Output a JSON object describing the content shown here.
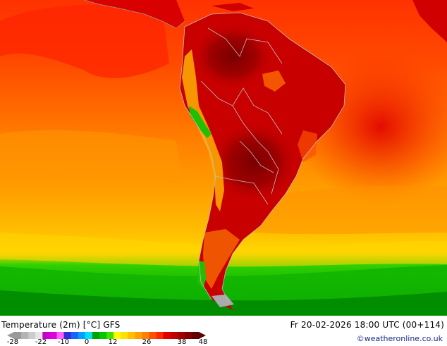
{
  "map": {
    "title": "Temperature (2m) [°C] GFS",
    "run_time": "Fr 20-02-2026 18:00 UTC (00+114)",
    "credit": "©weatheronline.co.uk",
    "region": "South America",
    "palette": {
      "ocean_warm": "#ff3a00",
      "ocean_mid": "#ff7a00",
      "ocean_cool": "#ffb800",
      "land_hot": "#c40000",
      "land_very_hot": "#8a0000",
      "cold_green": "#20c000",
      "deep_green": "#008a00",
      "border": "#bfbfbf"
    }
  },
  "legend": {
    "tick_labels": [
      "-28",
      "-22",
      "-10",
      "0",
      "12",
      "26",
      "38",
      "48"
    ],
    "colors": [
      "#9a9a9a",
      "#b4b4b4",
      "#cccccc",
      "#e6e6e6",
      "#c600c6",
      "#e000e0",
      "#ff60ff",
      "#3030d0",
      "#2060ff",
      "#00a0ff",
      "#00e0ff",
      "#00a000",
      "#00c800",
      "#40e000",
      "#ffff00",
      "#ffe000",
      "#ffc000",
      "#ffa000",
      "#ff8000",
      "#ff5000",
      "#ff2800",
      "#e00000",
      "#c00000",
      "#a00000",
      "#800000",
      "#600000"
    ]
  }
}
